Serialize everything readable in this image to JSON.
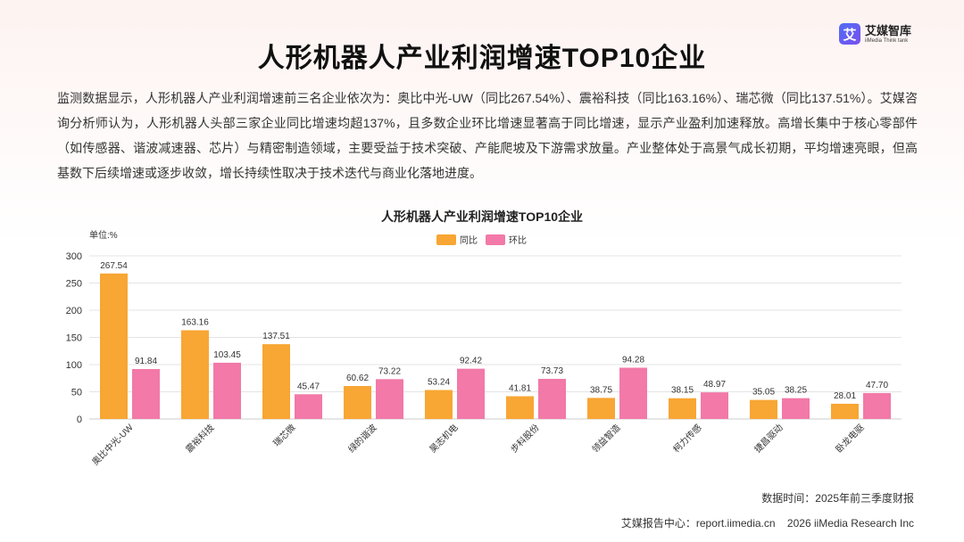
{
  "logo": {
    "mark": "艾",
    "name": "艾媒智库",
    "tagline": "iiMedia Think tank"
  },
  "title": "人形机器人产业利润增速TOP10企业",
  "summary": "监测数据显示，人形机器人产业利润增速前三名企业依次为：奥比中光-UW（同比267.54%）、震裕科技（同比163.16%）、瑞芯微（同比137.51%）。艾媒咨询分析师认为，人形机器人头部三家企业同比增速均超137%，且多数企业环比增速显著高于同比增速，显示产业盈利加速释放。高增长集中于核心零部件（如传感器、谐波减速器、芯片）与精密制造领域，主要受益于技术突破、产能爬坡及下游需求放量。产业整体处于高景气成长初期，平均增速亮眼，但高基数下后续增速或逐步收敛，增长持续性取决于技术迭代与商业化落地进度。",
  "colors": {
    "yoy": "#f8a634",
    "qoq": "#f279a8",
    "grid": "#e4e4e4",
    "axis": "#cccccc",
    "text": "#333333"
  },
  "chart_data": {
    "type": "bar",
    "title": "人形机器人产业利润增速TOP10企业",
    "unit": "单位:%",
    "categories": [
      "奥比中光-UW",
      "震裕科技",
      "瑞芯微",
      "绿的谐波",
      "昊志机电",
      "步科股份",
      "领益智造",
      "柯力传感",
      "捷昌驱动",
      "卧龙电驱"
    ],
    "series": [
      {
        "name": "同比",
        "values": [
          267.54,
          163.16,
          137.51,
          60.62,
          53.24,
          41.81,
          38.75,
          38.15,
          35.05,
          28.01
        ],
        "labels": [
          "267.54",
          "163.16",
          "137.51",
          "60.62",
          "53.24",
          "41.81",
          "38.75",
          "38.15",
          "35.05",
          "28.01"
        ]
      },
      {
        "name": "环比",
        "values": [
          91.84,
          103.45,
          45.47,
          73.22,
          92.42,
          73.73,
          94.28,
          48.97,
          38.25,
          47.7
        ],
        "labels": [
          "91.84",
          "103.45",
          "45.47",
          "73.22",
          "92.42",
          "73.73",
          "94.28",
          "48.97",
          "38.25",
          "47.70"
        ]
      }
    ],
    "yticks": [
      "0",
      "50",
      "100",
      "150",
      "200",
      "250",
      "300"
    ],
    "ylim": [
      0,
      300
    ],
    "grid": true,
    "legend": "top-center"
  },
  "source": "数据时间：2025年前三季度财报",
  "footer": {
    "center": "艾媒报告中心：report.iimedia.cn",
    "copyright": "2026 iiMedia Research Inc"
  }
}
